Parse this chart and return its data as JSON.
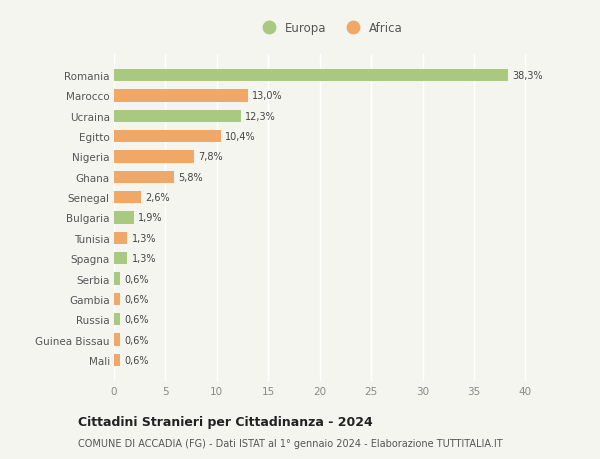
{
  "countries": [
    "Romania",
    "Marocco",
    "Ucraina",
    "Egitto",
    "Nigeria",
    "Ghana",
    "Senegal",
    "Bulgaria",
    "Tunisia",
    "Spagna",
    "Serbia",
    "Gambia",
    "Russia",
    "Guinea Bissau",
    "Mali"
  ],
  "values": [
    38.3,
    13.0,
    12.3,
    10.4,
    7.8,
    5.8,
    2.6,
    1.9,
    1.3,
    1.3,
    0.6,
    0.6,
    0.6,
    0.6,
    0.6
  ],
  "labels": [
    "38,3%",
    "13,0%",
    "12,3%",
    "10,4%",
    "7,8%",
    "5,8%",
    "2,6%",
    "1,9%",
    "1,3%",
    "1,3%",
    "0,6%",
    "0,6%",
    "0,6%",
    "0,6%",
    "0,6%"
  ],
  "continents": [
    "Europa",
    "Africa",
    "Europa",
    "Africa",
    "Africa",
    "Africa",
    "Africa",
    "Europa",
    "Africa",
    "Europa",
    "Europa",
    "Africa",
    "Europa",
    "Africa",
    "Africa"
  ],
  "color_europa": "#a8c97f",
  "color_africa": "#f0a868",
  "background_color": "#f5f5f0",
  "title": "Cittadini Stranieri per Cittadinanza - 2024",
  "subtitle": "COMUNE DI ACCADIA (FG) - Dati ISTAT al 1° gennaio 2024 - Elaborazione TUTTITALIA.IT",
  "xlim": [
    0,
    42
  ],
  "xticks": [
    0,
    5,
    10,
    15,
    20,
    25,
    30,
    35,
    40
  ],
  "legend_europa": "Europa",
  "legend_africa": "Africa"
}
